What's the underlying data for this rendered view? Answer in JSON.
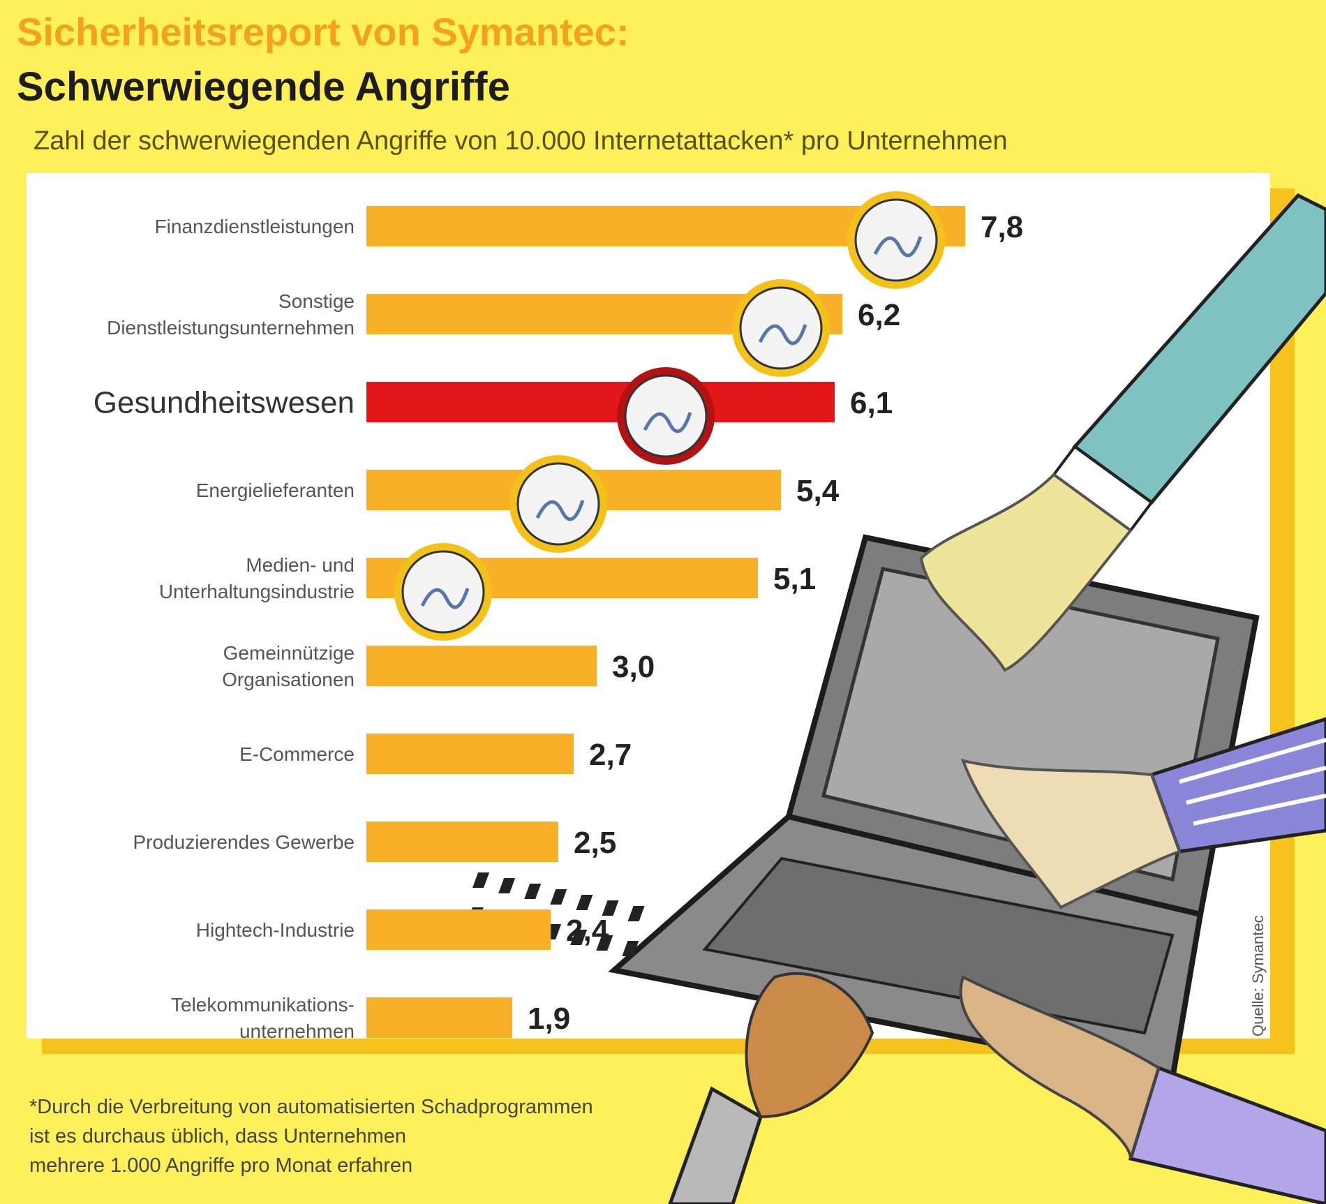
{
  "header": {
    "title": "Sicherheitsreport von Symantec:",
    "subtitle": "Schwerwiegende Angriffe",
    "description": "Zahl der schwerwiegenden Angriffe von 10.000 Internetattacken* pro Unternehmen"
  },
  "chart_data": {
    "type": "bar",
    "orientation": "horizontal",
    "categories": [
      "Finanzdienstleistungen",
      "Sonstige Dienstleistungsunternehmen",
      "Gesundheitswesen",
      "Energielieferanten",
      "Medien- und Unterhaltungsindustrie",
      "Gemeinnützige Organisationen",
      "E-Commerce",
      "Produzierendes Gewerbe",
      "Hightech-Industrie",
      "Telekommunikations-unternehmen"
    ],
    "category_lines": [
      [
        "Finanzdienstleistungen"
      ],
      [
        "Sonstige",
        "Dienstleistungsunternehmen"
      ],
      [
        "Gesundheitswesen"
      ],
      [
        "Energielieferanten"
      ],
      [
        "Medien- und",
        "Unterhaltungsindustrie"
      ],
      [
        "Gemeinnützige",
        "Organisationen"
      ],
      [
        "E-Commerce"
      ],
      [
        "Produzierendes Gewerbe"
      ],
      [
        "Hightech-Industrie"
      ],
      [
        "Telekommunikations-",
        "unternehmen"
      ]
    ],
    "values": [
      7.8,
      6.2,
      6.1,
      5.4,
      5.1,
      3.0,
      2.7,
      2.5,
      2.4,
      1.9
    ],
    "value_labels": [
      "7,8",
      "6,2",
      "6,1",
      "5,4",
      "5,1",
      "3,0",
      "2,7",
      "2,5",
      "2,4",
      "1,9"
    ],
    "highlight_index": 2,
    "xlim": [
      0,
      8
    ],
    "grid": false,
    "colors": {
      "bar": "#f9b026",
      "highlight": "#e3161a",
      "text": "#222222"
    }
  },
  "footnote": {
    "lines": [
      "*Durch die Verbreitung von automatisierten Schadprogrammen",
      "ist es durchaus üblich, dass Unternehmen",
      "mehrere 1.000 Angriffe pro Monat erfahren"
    ]
  },
  "source": "Quelle: Symantec",
  "colors": {
    "background": "#fdf05a",
    "title": "#f2a21b",
    "panel_shadow": "#f7c21e"
  }
}
